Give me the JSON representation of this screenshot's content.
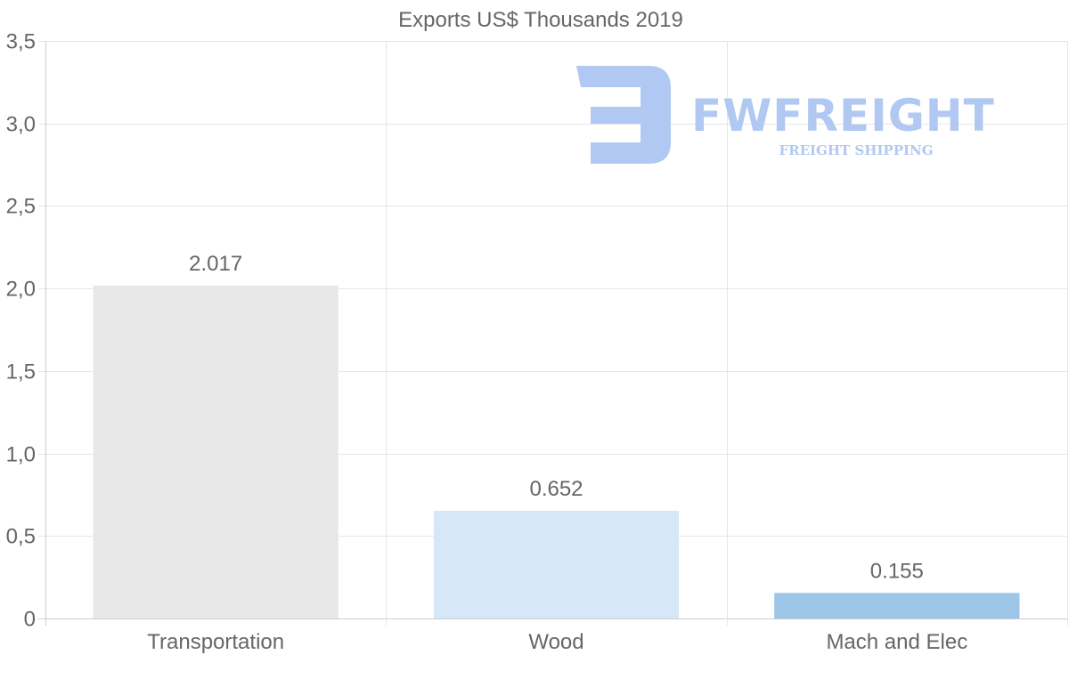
{
  "chart_data": {
    "type": "bar",
    "title": "Exports US$ Thousands 2019",
    "categories": [
      "Transportation",
      "Wood",
      "Mach and Elec"
    ],
    "values": [
      2.017,
      0.652,
      0.155
    ],
    "data_labels": [
      "2.017",
      "0.652",
      "0.155"
    ],
    "bar_colors": [
      "#e8e8e8",
      "#d6e7f8",
      "#9dc5e8"
    ],
    "ylim": [
      0,
      3.5
    ],
    "yticks": [
      0,
      0.5,
      1.0,
      1.5,
      2.0,
      2.5,
      3.0,
      3.5
    ],
    "ytick_labels": [
      "0",
      "0,5",
      "1,0",
      "1,5",
      "2,0",
      "2,5",
      "3,0",
      "3,5"
    ],
    "xlabel": "",
    "ylabel": "",
    "grid": true
  },
  "watermark": {
    "brand": "FWFREIGHT",
    "tagline": "FREIGHT SHIPPING",
    "color": "#b1c9f2"
  }
}
